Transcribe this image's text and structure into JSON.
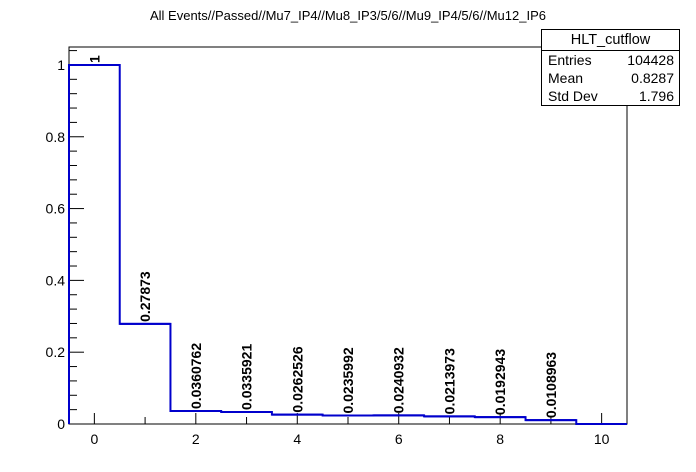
{
  "chart_data": {
    "type": "bar",
    "histtype": "step",
    "title": "All Events//Passed//Mu7_IP4//Mu8_IP3/5/6//Mu9_IP4/5/6//Mu12_IP6",
    "x": [
      0,
      1,
      2,
      3,
      4,
      5,
      6,
      7,
      8,
      9
    ],
    "values": [
      1,
      0.27873,
      0.0360762,
      0.0335921,
      0.0262526,
      0.0235992,
      0.0240932,
      0.0213973,
      0.0192943,
      0.0108963
    ],
    "bar_labels": [
      "1",
      "0.27873",
      "0.0360762",
      "0.0335921",
      "0.0262526",
      "0.0235992",
      "0.0240932",
      "0.0213973",
      "0.0192943",
      "0.0108963"
    ],
    "xlim": [
      -0.5,
      10.5
    ],
    "ylim": [
      0,
      1.05
    ],
    "xticks": [
      0,
      2,
      4,
      6,
      8,
      10
    ],
    "xtick_labels": [
      "0",
      "2",
      "4",
      "6",
      "8",
      "10"
    ],
    "yticks": [
      0,
      0.2,
      0.4,
      0.6,
      0.8,
      1
    ],
    "ytick_labels": [
      "0",
      "0.2",
      "0.4",
      "0.6",
      "0.8",
      "1"
    ],
    "xlabel": "",
    "ylabel": "",
    "grid": false,
    "line_color": "#0000cc",
    "stats": {
      "name": "HLT_cutflow",
      "entries_label": "Entries",
      "entries": "104428",
      "mean_label": "Mean",
      "mean": "0.8287",
      "stddev_label": "Std Dev",
      "stddev": "1.796"
    }
  }
}
